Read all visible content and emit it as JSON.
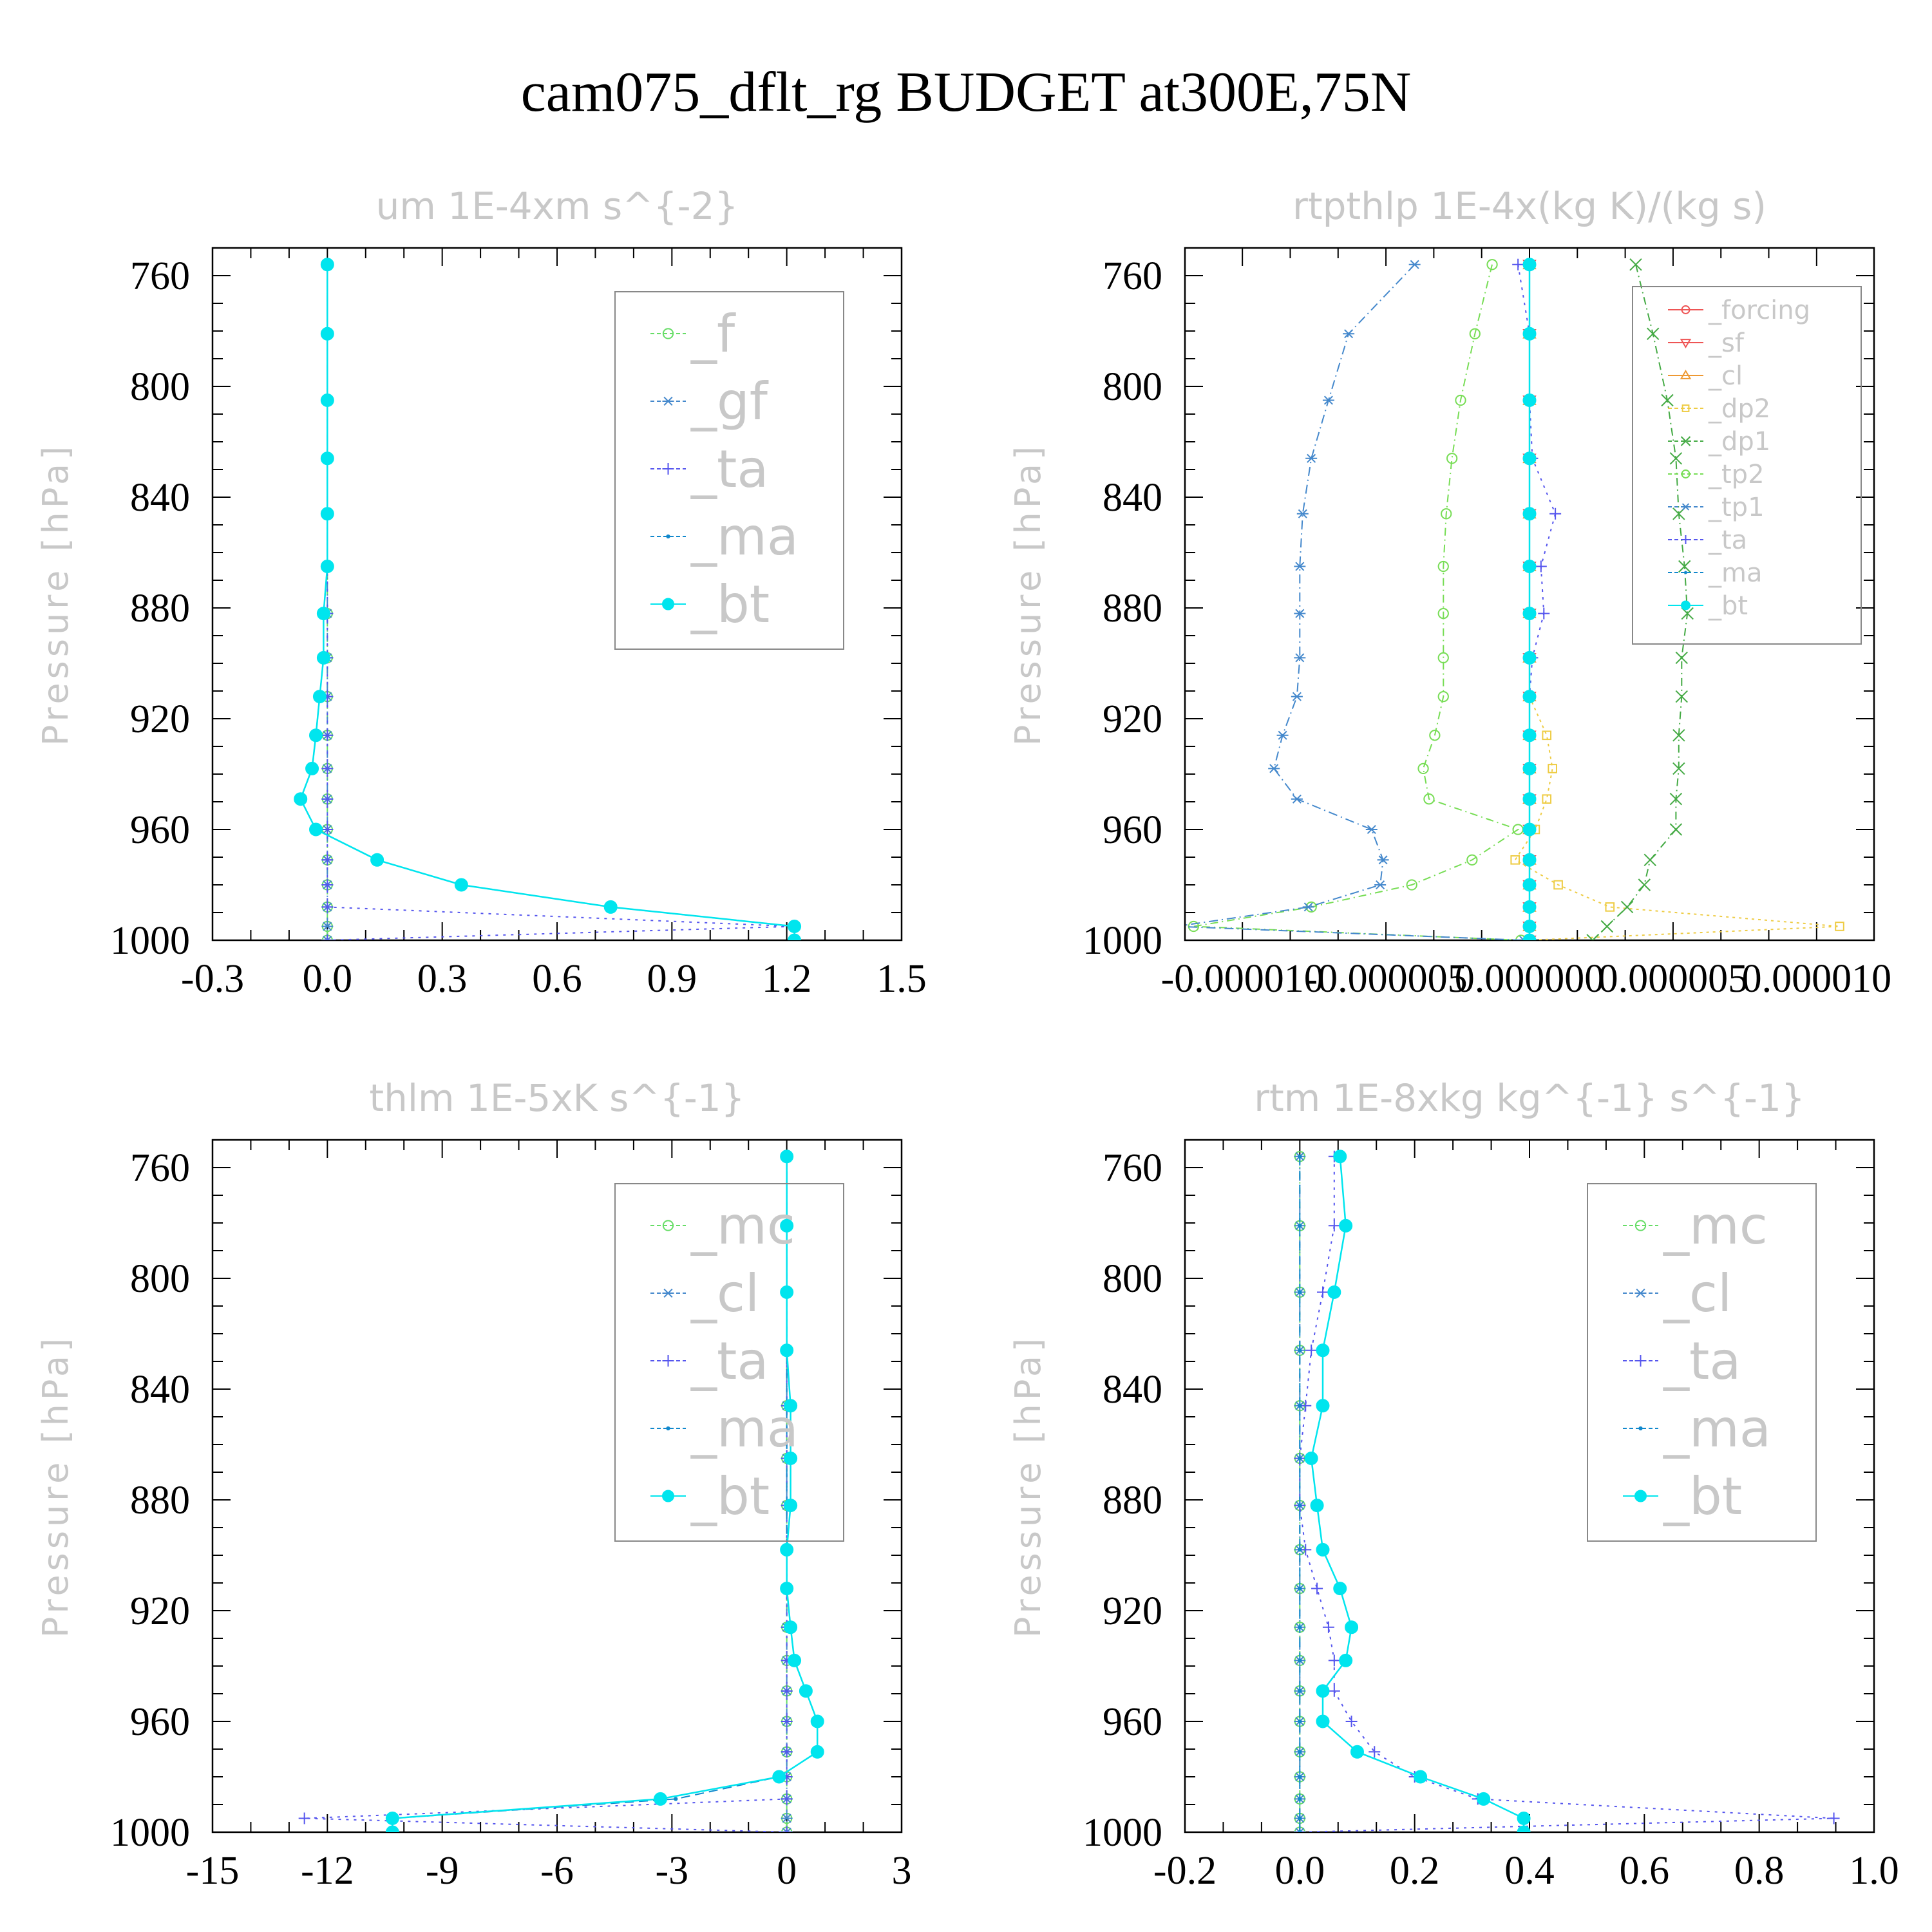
{
  "title": "cam075_dflt_rg  BUDGET at300E,75N",
  "chart_data": [
    {
      "type": "line",
      "title": "um   1E-4xm s^{-2}",
      "ylabel": "Pressure [hPa]",
      "xlim": [
        -0.3,
        1.5
      ],
      "ylim": [
        1000,
        750
      ],
      "xticks": [
        "-0.3",
        "0.0",
        "0.3",
        "0.6",
        "0.9",
        "1.2",
        "1.5"
      ],
      "xtick_values": [
        -0.3,
        0.0,
        0.3,
        0.6,
        0.9,
        1.2,
        1.5
      ],
      "yticks": [
        "760",
        "800",
        "840",
        "880",
        "920",
        "960",
        "1000"
      ],
      "ytick_values": [
        760,
        800,
        840,
        880,
        920,
        960,
        1000
      ],
      "y": [
        756,
        781,
        805,
        826,
        846,
        865,
        882,
        898,
        912,
        926,
        938,
        949,
        960,
        971,
        980,
        988,
        995,
        1000
      ],
      "legend_size": "large",
      "series": [
        {
          "name": "_f",
          "color": "#66dd66",
          "marker": "circle-open",
          "dash": "10,6,2,6",
          "values": [
            0.0,
            0.0,
            0.0,
            0.0,
            0.0,
            0.0,
            0.0,
            0.0,
            0.0,
            0.0,
            0.0,
            0.0,
            0.0,
            0.0,
            0.0,
            0.0,
            0.0,
            0.0
          ]
        },
        {
          "name": "_gf",
          "color": "#4488cc",
          "marker": "asterisk",
          "dash": "12,6,2,6",
          "values": [
            0.0,
            0.0,
            0.0,
            0.0,
            0.0,
            0.0,
            0.0,
            0.0,
            0.0,
            0.0,
            0.0,
            0.0,
            0.0,
            0.0,
            0.0,
            0.0,
            0.0,
            0.0
          ]
        },
        {
          "name": "_ta",
          "color": "#5555ee",
          "marker": "plus",
          "dash": "4,8",
          "values": [
            0.0,
            0.0,
            0.0,
            0.0,
            0.0,
            0.0,
            0.0,
            0.0,
            0.0,
            0.0,
            0.0,
            0.0,
            0.0,
            0.0,
            0.0,
            0.0,
            1.22,
            0.0
          ]
        },
        {
          "name": "_ma",
          "color": "#1188cc",
          "marker": "dot",
          "dash": "14,8",
          "values": [
            0.0,
            0.0,
            0.0,
            0.0,
            0.0,
            0.0,
            -0.01,
            -0.01,
            -0.02,
            -0.03,
            -0.04,
            -0.07,
            -0.03,
            0.13,
            0.35,
            0.74,
            1.22,
            1.22
          ]
        },
        {
          "name": "_bt",
          "color": "#00e5ee",
          "marker": "filled-circle",
          "dash": "",
          "values": [
            0.0,
            0.0,
            0.0,
            0.0,
            0.0,
            0.0,
            -0.01,
            -0.01,
            -0.02,
            -0.03,
            -0.04,
            -0.07,
            -0.03,
            0.13,
            0.35,
            0.74,
            1.22,
            1.22
          ]
        }
      ]
    },
    {
      "type": "line",
      "title": "rtpthlp   1E-4x(kg K)/(kg s)",
      "ylabel": "Pressure [hPa]",
      "xlim": [
        -1.2e-05,
        1.2e-05
      ],
      "ylim": [
        1000,
        750
      ],
      "xticks": [
        "-0.000010",
        "-0.000005",
        "0.000000",
        "0.000005",
        "0.000010"
      ],
      "xtick_values": [
        -1e-05,
        -5e-06,
        0.0,
        5e-06,
        1e-05
      ],
      "yticks": [
        "760",
        "800",
        "840",
        "880",
        "920",
        "960",
        "1000"
      ],
      "ytick_values": [
        760,
        800,
        840,
        880,
        920,
        960,
        1000
      ],
      "y": [
        756,
        781,
        805,
        826,
        846,
        865,
        882,
        898,
        912,
        926,
        938,
        949,
        960,
        971,
        980,
        988,
        995,
        1000
      ],
      "legend_size": "small",
      "series": [
        {
          "name": "_forcing",
          "color": "#ee5555",
          "marker": "circle-open",
          "dash": "",
          "values": [
            0.0,
            0.0,
            0.0,
            0.0,
            0.0,
            0.0,
            0.0,
            0.0,
            0.0,
            0.0,
            0.0,
            0.0,
            0.0,
            0.0,
            0.0,
            0.0,
            0.0,
            0.0
          ]
        },
        {
          "name": "_sf",
          "color": "#ee5555",
          "marker": "triangle-down",
          "dash": "",
          "values": [
            0.0,
            0.0,
            0.0,
            0.0,
            0.0,
            0.0,
            0.0,
            0.0,
            0.0,
            0.0,
            0.0,
            0.0,
            0.0,
            0.0,
            0.0,
            0.0,
            0.0,
            0.0
          ]
        },
        {
          "name": "_cl",
          "color": "#ee9933",
          "marker": "triangle-up",
          "dash": "",
          "values": [
            0.0,
            0.0,
            0.0,
            0.0,
            0.0,
            0.0,
            0.0,
            0.0,
            0.0,
            0.0,
            0.0,
            0.0,
            0.0,
            0.0,
            0.0,
            0.0,
            0.0,
            0.0
          ]
        },
        {
          "name": "_dp2",
          "color": "#eecc44",
          "marker": "square-open",
          "dash": "4,6",
          "values": [
            0.0,
            0.0,
            0.0,
            0.0,
            0.0,
            0.0,
            0.0,
            0.0,
            0.0,
            6e-07,
            8e-07,
            6e-07,
            2e-07,
            -5e-07,
            1e-06,
            2.8e-06,
            1.08e-05,
            0.0
          ]
        },
        {
          "name": "_dp1",
          "color": "#44aa44",
          "marker": "x",
          "dash": "12,6,2,6",
          "values": [
            3.7e-06,
            4.3e-06,
            4.8e-06,
            5.1e-06,
            5.2e-06,
            5.4e-06,
            5.5e-06,
            5.3e-06,
            5.3e-06,
            5.2e-06,
            5.2e-06,
            5.1e-06,
            5.1e-06,
            4.2e-06,
            4e-06,
            3.4e-06,
            2.7e-06,
            2.2e-06
          ]
        },
        {
          "name": "_tp2",
          "color": "#77dd55",
          "marker": "circle-open",
          "dash": "12,6,2,6",
          "values": [
            -1.3e-06,
            -1.9e-06,
            -2.4e-06,
            -2.7e-06,
            -2.9e-06,
            -3e-06,
            -3e-06,
            -3e-06,
            -3e-06,
            -3.3e-06,
            -3.7e-06,
            -3.5e-06,
            -4e-07,
            -2e-06,
            -4.1e-06,
            -7.6e-06,
            -1.17e-05,
            -3e-07
          ]
        },
        {
          "name": "_tp1",
          "color": "#4488cc",
          "marker": "asterisk",
          "dash": "14,6,2,6",
          "values": [
            -4e-06,
            -6.3e-06,
            -7e-06,
            -7.6e-06,
            -7.9e-06,
            -8e-06,
            -8e-06,
            -8e-06,
            -8.1e-06,
            -8.6e-06,
            -8.9e-06,
            -8.1e-06,
            -5.5e-06,
            -5.1e-06,
            -5.2e-06,
            -7.7e-06,
            -1.23e-05,
            -2e-07
          ]
        },
        {
          "name": "_ta",
          "color": "#5555ee",
          "marker": "plus",
          "dash": "4,8",
          "values": [
            -4e-07,
            0.0,
            0.0,
            1e-07,
            9e-07,
            4e-07,
            5e-07,
            1e-07,
            0.0,
            0.0,
            0.0,
            0.0,
            0.0,
            0.0,
            0.0,
            0.0,
            0.0,
            0.0
          ]
        },
        {
          "name": "_ma",
          "color": "#1188cc",
          "marker": "dot",
          "dash": "14,8",
          "values": [
            0.0,
            0.0,
            0.0,
            0.0,
            0.0,
            0.0,
            0.0,
            0.0,
            0.0,
            0.0,
            0.0,
            0.0,
            0.0,
            0.0,
            0.0,
            0.0,
            0.0,
            0.0
          ]
        },
        {
          "name": "_bt",
          "color": "#00e5ee",
          "marker": "filled-circle",
          "dash": "",
          "values": [
            0.0,
            0.0,
            0.0,
            0.0,
            0.0,
            0.0,
            0.0,
            0.0,
            0.0,
            0.0,
            0.0,
            0.0,
            0.0,
            0.0,
            0.0,
            0.0,
            0.0,
            0.0
          ]
        }
      ]
    },
    {
      "type": "line",
      "title": "thlm   1E-5xK s^{-1}",
      "ylabel": "Pressure [hPa]",
      "xlim": [
        -15,
        3
      ],
      "ylim": [
        1000,
        750
      ],
      "xticks": [
        "-15",
        "-12",
        "-9",
        "-6",
        "-3",
        "0",
        "3"
      ],
      "xtick_values": [
        -15,
        -12,
        -9,
        -6,
        -3,
        0,
        3
      ],
      "yticks": [
        "760",
        "800",
        "840",
        "880",
        "920",
        "960",
        "1000"
      ],
      "ytick_values": [
        760,
        800,
        840,
        880,
        920,
        960,
        1000
      ],
      "y": [
        756,
        781,
        805,
        826,
        846,
        865,
        882,
        898,
        912,
        926,
        938,
        949,
        960,
        971,
        980,
        988,
        995,
        1000
      ],
      "legend_size": "large",
      "series": [
        {
          "name": "_mc",
          "color": "#66dd66",
          "marker": "circle-open",
          "dash": "10,6,2,6",
          "values": [
            0.0,
            0.0,
            0.0,
            0.0,
            0.0,
            0.0,
            0.0,
            0.0,
            0.0,
            0.0,
            0.0,
            0.0,
            0.0,
            0.0,
            0.0,
            0.0,
            0.0,
            0.0
          ]
        },
        {
          "name": "_cl",
          "color": "#4488cc",
          "marker": "asterisk",
          "dash": "12,6,2,6",
          "values": [
            0.0,
            0.0,
            0.0,
            0.0,
            0.0,
            0.0,
            0.0,
            0.0,
            0.0,
            0.0,
            0.0,
            0.0,
            0.0,
            0.0,
            0.0,
            0.0,
            0.0,
            0.0
          ]
        },
        {
          "name": "_ta",
          "color": "#5555ee",
          "marker": "plus",
          "dash": "4,8",
          "values": [
            0.0,
            0.0,
            0.0,
            0.0,
            0.0,
            0.0,
            0.0,
            0.0,
            0.0,
            0.0,
            0.0,
            0.0,
            0.0,
            0.0,
            0.0,
            0.0,
            -12.6,
            0.0
          ]
        },
        {
          "name": "_ma",
          "color": "#1188cc",
          "marker": "dot",
          "dash": "14,8",
          "values": [
            0.0,
            0.0,
            0.0,
            0.0,
            0.0,
            0.0,
            0.0,
            0.0,
            0.0,
            0.1,
            0.2,
            0.5,
            0.8,
            0.8,
            -0.2,
            -2.9,
            -10.3,
            -10.3
          ]
        },
        {
          "name": "_bt",
          "color": "#00e5ee",
          "marker": "filled-circle",
          "dash": "",
          "values": [
            0.0,
            0.0,
            0.0,
            0.0,
            0.1,
            0.1,
            0.1,
            0.0,
            0.0,
            0.1,
            0.2,
            0.5,
            0.8,
            0.8,
            -0.2,
            -3.3,
            -10.3,
            -10.3
          ]
        }
      ]
    },
    {
      "type": "line",
      "title": "rtm   1E-8xkg kg^{-1} s^{-1}",
      "ylabel": "Pressure [hPa]",
      "xlim": [
        -0.2,
        1.0
      ],
      "ylim": [
        1000,
        750
      ],
      "xticks": [
        "-0.2",
        "0.0",
        "0.2",
        "0.4",
        "0.6",
        "0.8",
        "1.0"
      ],
      "xtick_values": [
        -0.2,
        0.0,
        0.2,
        0.4,
        0.6,
        0.8,
        1.0
      ],
      "yticks": [
        "760",
        "800",
        "840",
        "880",
        "920",
        "960",
        "1000"
      ],
      "ytick_values": [
        760,
        800,
        840,
        880,
        920,
        960,
        1000
      ],
      "y": [
        756,
        781,
        805,
        826,
        846,
        865,
        882,
        898,
        912,
        926,
        938,
        949,
        960,
        971,
        980,
        988,
        995,
        1000
      ],
      "legend_size": "large",
      "series": [
        {
          "name": "_mc",
          "color": "#66dd66",
          "marker": "circle-open",
          "dash": "10,6,2,6",
          "values": [
            0.0,
            0.0,
            0.0,
            0.0,
            0.0,
            0.0,
            0.0,
            0.0,
            0.0,
            0.0,
            0.0,
            0.0,
            0.0,
            0.0,
            0.0,
            0.0,
            0.0,
            0.0
          ]
        },
        {
          "name": "_cl",
          "color": "#4488cc",
          "marker": "asterisk",
          "dash": "12,6,2,6",
          "values": [
            0.0,
            0.0,
            0.0,
            0.0,
            0.0,
            0.0,
            0.0,
            0.0,
            0.0,
            0.0,
            0.0,
            0.0,
            0.0,
            0.0,
            0.0,
            0.0,
            0.0,
            0.0
          ]
        },
        {
          "name": "_ta",
          "color": "#5555ee",
          "marker": "plus",
          "dash": "4,8",
          "values": [
            0.06,
            0.06,
            0.04,
            0.02,
            0.01,
            0.0,
            0.0,
            0.01,
            0.03,
            0.05,
            0.06,
            0.06,
            0.09,
            0.13,
            0.2,
            0.31,
            0.93,
            0.0
          ]
        },
        {
          "name": "_ma",
          "color": "#1188cc",
          "marker": "dot",
          "dash": "14,8",
          "values": [
            0.0,
            0.0,
            0.0,
            0.0,
            0.0,
            0.0,
            0.0,
            0.0,
            0.0,
            0.0,
            0.0,
            0.0,
            0.0,
            0.0,
            0.0,
            0.0,
            0.0,
            0.0
          ]
        },
        {
          "name": "_bt",
          "color": "#00e5ee",
          "marker": "filled-circle",
          "dash": "",
          "values": [
            0.07,
            0.08,
            0.06,
            0.04,
            0.04,
            0.02,
            0.03,
            0.04,
            0.07,
            0.09,
            0.08,
            0.04,
            0.04,
            0.1,
            0.21,
            0.32,
            0.39,
            0.39
          ]
        }
      ]
    }
  ]
}
